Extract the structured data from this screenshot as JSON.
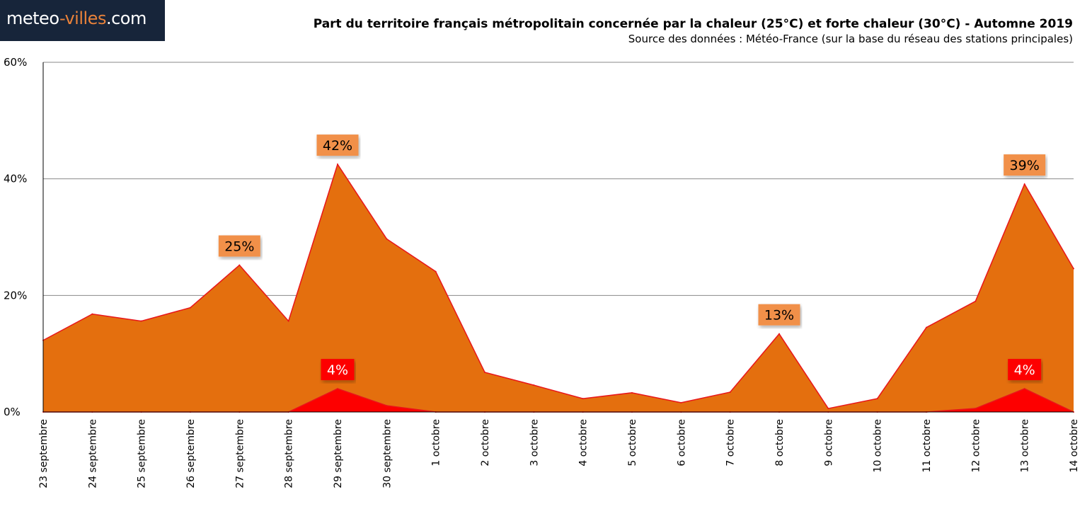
{
  "logo": {
    "part1": "meteo",
    "part2": "-villes",
    "part3": ".com"
  },
  "chart_data": {
    "type": "area",
    "title": "Part du territoire français métropolitain concernée par la chaleur (25°C) et forte chaleur (30°C) - Automne 2019",
    "subtitle": "Source des données : Météo-France (sur la base du réseau des stations principales)",
    "xlabel": "",
    "ylabel": "",
    "ylim": [
      0,
      60
    ],
    "yticks": [
      0,
      20,
      40,
      60
    ],
    "ytick_labels": [
      "0%",
      "20%",
      "40%",
      "60%"
    ],
    "grid": true,
    "categories": [
      "23 septembre",
      "24 septembre",
      "25 septembre",
      "26 septembre",
      "27 septembre",
      "28 septembre",
      "29 septembre",
      "30 septembre",
      "1 octobre",
      "2 octobre",
      "3 octobre",
      "4 octobre",
      "5 octobre",
      "6 octobre",
      "7 octobre",
      "8 octobre",
      "9 octobre",
      "10 octobre",
      "11 octobre",
      "12 octobre",
      "13 octobre",
      "14 octobre"
    ],
    "series": [
      {
        "name": "Chaleur (25°C)",
        "color": "#e46f0e",
        "line_color": "#e8151a",
        "values": [
          12.3,
          16.8,
          15.6,
          17.9,
          25.2,
          15.6,
          42.5,
          29.7,
          24.1,
          6.8,
          4.6,
          2.3,
          3.3,
          1.6,
          3.4,
          13.4,
          0.6,
          2.3,
          14.5,
          19.0,
          39.1,
          24.6
        ]
      },
      {
        "name": "Forte chaleur (30°C)",
        "color": "#fd0000",
        "line_color": "#e8151a",
        "values": [
          0,
          0,
          0,
          0,
          0,
          0,
          4.0,
          1.1,
          0,
          0,
          0,
          0,
          0,
          0,
          0,
          0,
          0,
          0,
          0,
          0.6,
          4.0,
          0
        ]
      }
    ],
    "annotations": [
      {
        "series": 0,
        "index": 4,
        "text": "25%",
        "bg": "#f1904a",
        "color": "#000000"
      },
      {
        "series": 0,
        "index": 6,
        "text": "42%",
        "bg": "#f1904a",
        "color": "#000000"
      },
      {
        "series": 0,
        "index": 15,
        "text": "13%",
        "bg": "#f1904a",
        "color": "#000000"
      },
      {
        "series": 0,
        "index": 20,
        "text": "39%",
        "bg": "#f1904a",
        "color": "#000000"
      },
      {
        "series": 1,
        "index": 6,
        "text": "4%",
        "bg": "#fd0000",
        "color": "#ffffff"
      },
      {
        "series": 1,
        "index": 20,
        "text": "4%",
        "bg": "#fd0000",
        "color": "#ffffff"
      }
    ]
  }
}
